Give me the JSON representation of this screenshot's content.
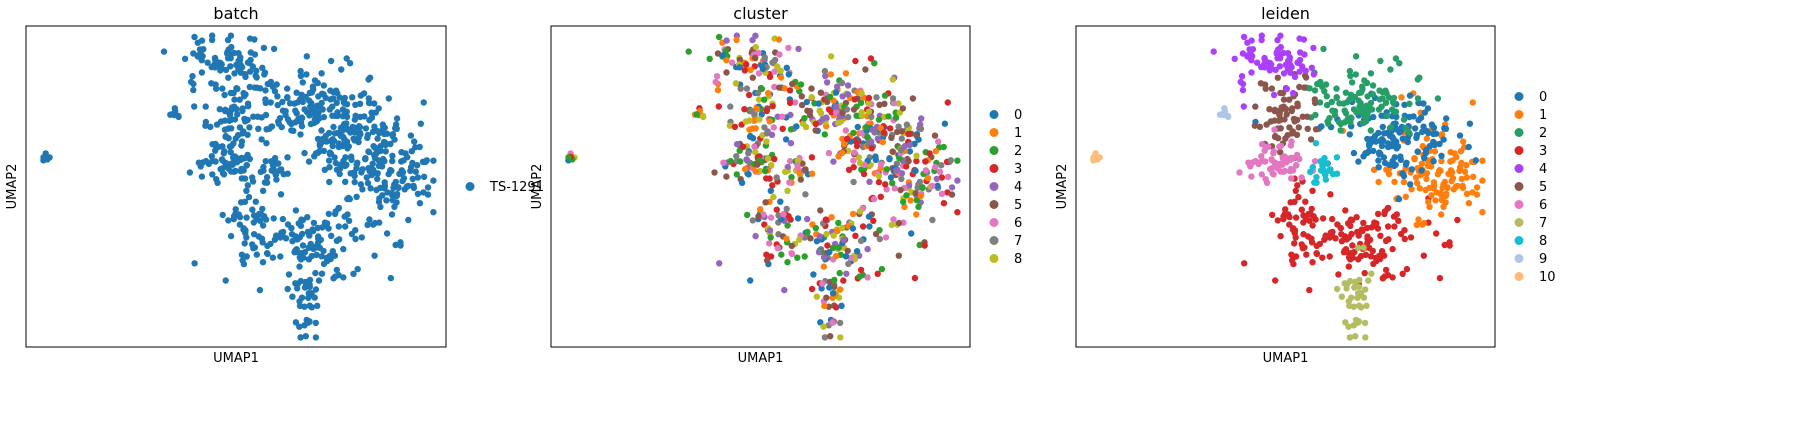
{
  "chart_data": [
    {
      "type": "scatter",
      "title": "batch",
      "xlabel": "UMAP1",
      "ylabel": "UMAP2",
      "grid": false,
      "legend_placement": "right",
      "series": [
        {
          "name": "TS-1291",
          "color": "#1f77b4"
        }
      ]
    },
    {
      "type": "scatter",
      "title": "cluster",
      "xlabel": "UMAP1",
      "ylabel": "UMAP2",
      "grid": false,
      "legend_placement": "right",
      "series": [
        {
          "name": "0",
          "color": "#1f77b4"
        },
        {
          "name": "1",
          "color": "#ff7f0e"
        },
        {
          "name": "2",
          "color": "#2ca02c"
        },
        {
          "name": "3",
          "color": "#d62728"
        },
        {
          "name": "4",
          "color": "#9467bd"
        },
        {
          "name": "5",
          "color": "#8c564b"
        },
        {
          "name": "6",
          "color": "#e377c2"
        },
        {
          "name": "7",
          "color": "#7f7f7f"
        },
        {
          "name": "8",
          "color": "#bcbd22"
        }
      ]
    },
    {
      "type": "scatter",
      "title": "leiden",
      "xlabel": "UMAP1",
      "ylabel": "UMAP2",
      "grid": false,
      "legend_placement": "right",
      "series": [
        {
          "name": "0",
          "color": "#1f77b4"
        },
        {
          "name": "1",
          "color": "#ff7f0e"
        },
        {
          "name": "2",
          "color": "#279e68"
        },
        {
          "name": "3",
          "color": "#d62728"
        },
        {
          "name": "4",
          "color": "#aa40fc"
        },
        {
          "name": "5",
          "color": "#8c564b"
        },
        {
          "name": "6",
          "color": "#e377c2"
        },
        {
          "name": "7",
          "color": "#b5bd61"
        },
        {
          "name": "8",
          "color": "#17becf"
        },
        {
          "name": "9",
          "color": "#aec7e8"
        },
        {
          "name": "10",
          "color": "#ffbb78"
        }
      ]
    }
  ]
}
